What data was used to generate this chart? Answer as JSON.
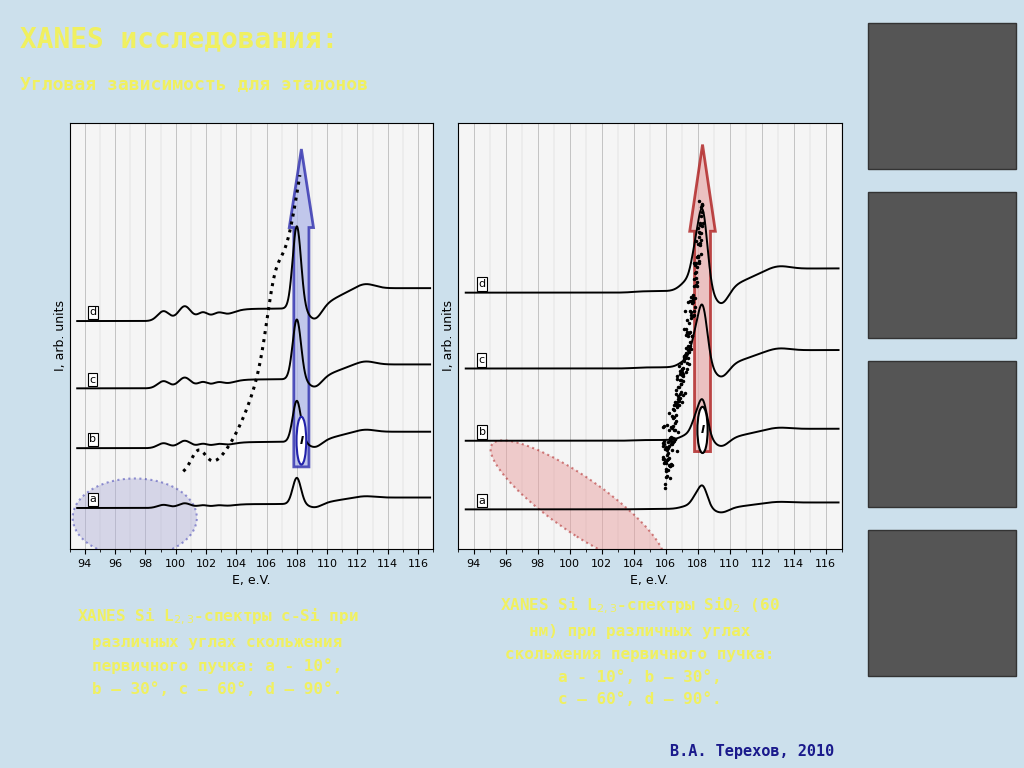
{
  "title_line1": "XANES исследования:",
  "title_line2": "Угловая зависимость для эталонов",
  "title_bg": "#1a1a9c",
  "title_fg": "#f0f060",
  "bg_color": "#cce0ec",
  "plot_bg": "#f5f5f5",
  "border_color": "#d4d400",
  "ylabel": "I, arb. units",
  "xlabel": "E, e.V.",
  "xlim": [
    93,
    117
  ],
  "xticks": [
    94,
    96,
    98,
    100,
    102,
    104,
    106,
    108,
    110,
    112,
    114,
    116
  ],
  "author": "В.А. Терехов, 2010",
  "arrow1_color": "#2222aa",
  "arrow2_color": "#aa1111",
  "ellipse1_fill": "#aaaacc",
  "ellipse2_fill": "#dd9999"
}
